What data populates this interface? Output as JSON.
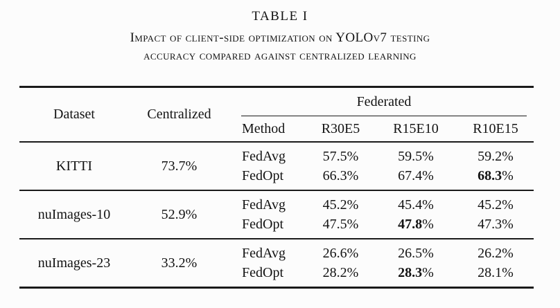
{
  "title": "TABLE I",
  "caption_line1": "Impact of client-side optimization on YOLOv7 testing",
  "caption_line2": "accuracy compared against centralized learning",
  "table": {
    "headers": {
      "dataset": "Dataset",
      "centralized": "Centralized",
      "federated": "Federated",
      "method": "Method",
      "col1": "R30E5",
      "col2": "R15E10",
      "col3": "R10E15"
    },
    "groups": [
      {
        "dataset": "KITTI",
        "centralized": "73.7%",
        "rows": [
          {
            "method": "FedAvg",
            "v1": "57.5%",
            "v2": "59.5%",
            "v3": "59.2%"
          },
          {
            "method": "FedOpt",
            "v1": "66.3%",
            "v2": "67.4%",
            "v3_bold": "68.3",
            "v3_suffix": "%"
          }
        ]
      },
      {
        "dataset": "nuImages-10",
        "centralized": "52.9%",
        "rows": [
          {
            "method": "FedAvg",
            "v1": "45.2%",
            "v2": "45.4%",
            "v3": "45.2%"
          },
          {
            "method": "FedOpt",
            "v1": "47.5%",
            "v2_bold": "47.8",
            "v2_suffix": "%",
            "v3": "47.3%"
          }
        ]
      },
      {
        "dataset": "nuImages-23",
        "centralized": "33.2%",
        "rows": [
          {
            "method": "FedAvg",
            "v1": "26.6%",
            "v2": "26.5%",
            "v3": "26.2%"
          },
          {
            "method": "FedOpt",
            "v1": "28.2%",
            "v2_bold": "28.3",
            "v2_suffix": "%",
            "v3": "28.1%"
          }
        ]
      }
    ]
  },
  "colors": {
    "background": "#fcfcfc",
    "text": "#131313",
    "rule": "#1a1a1a"
  }
}
